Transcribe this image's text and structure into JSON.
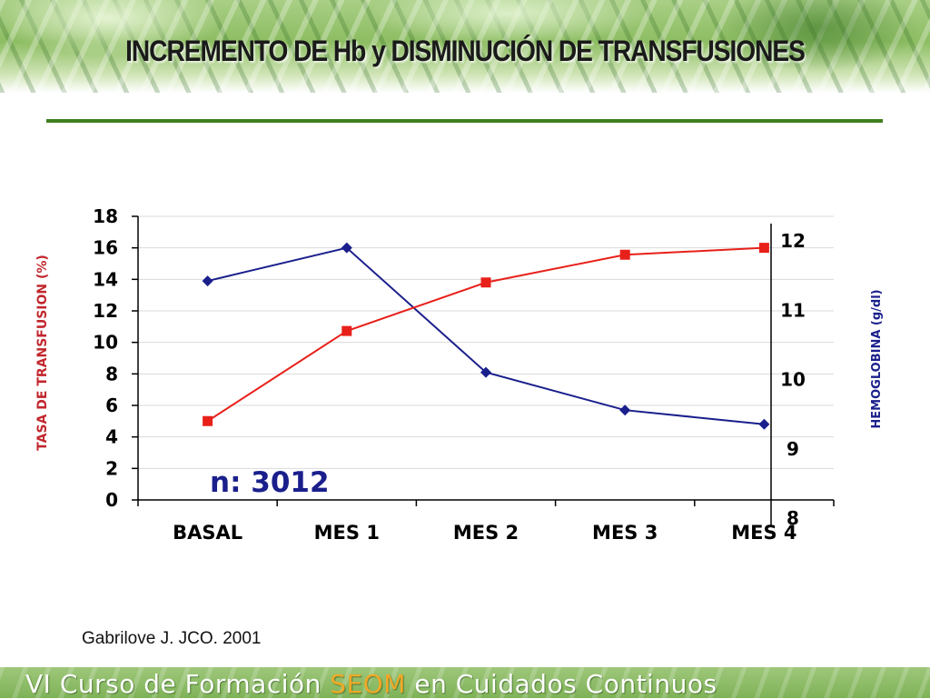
{
  "title": "INCREMENTO DE Hb y DISMINUCIÓN DE TRANSFUSIONES",
  "citation": "Gabrilove J. JCO. 2001",
  "footer": {
    "before": "VI Curso de Formación ",
    "highlight": "SEOM",
    "after": " en Cuidados Continuos"
  },
  "chart_data": {
    "type": "line",
    "categories": [
      "BASAL",
      "MES 1",
      "MES 2",
      "MES 3",
      "MES 4"
    ],
    "ylabel": "TASA DE TRANSFUSION (%)",
    "y2label": "HEMOGLOBINA (g/dl)",
    "ylim": [
      0,
      18
    ],
    "yticks": [
      0,
      2,
      4,
      6,
      8,
      10,
      12,
      14,
      16,
      18
    ],
    "y2lim": [
      8,
      12
    ],
    "y2ticks": [
      8,
      9,
      10,
      11,
      12
    ],
    "grid": true,
    "annotation": "n: 3012",
    "series": [
      {
        "axis": "left",
        "color": "#1a1f8c",
        "marker": "diamond",
        "values": [
          13.9,
          16.0,
          8.1,
          5.7,
          4.8
        ]
      },
      {
        "axis": "right",
        "color": "#e8201a",
        "marker": "square",
        "values": [
          9.4,
          10.7,
          11.4,
          11.8,
          11.9
        ]
      }
    ]
  }
}
